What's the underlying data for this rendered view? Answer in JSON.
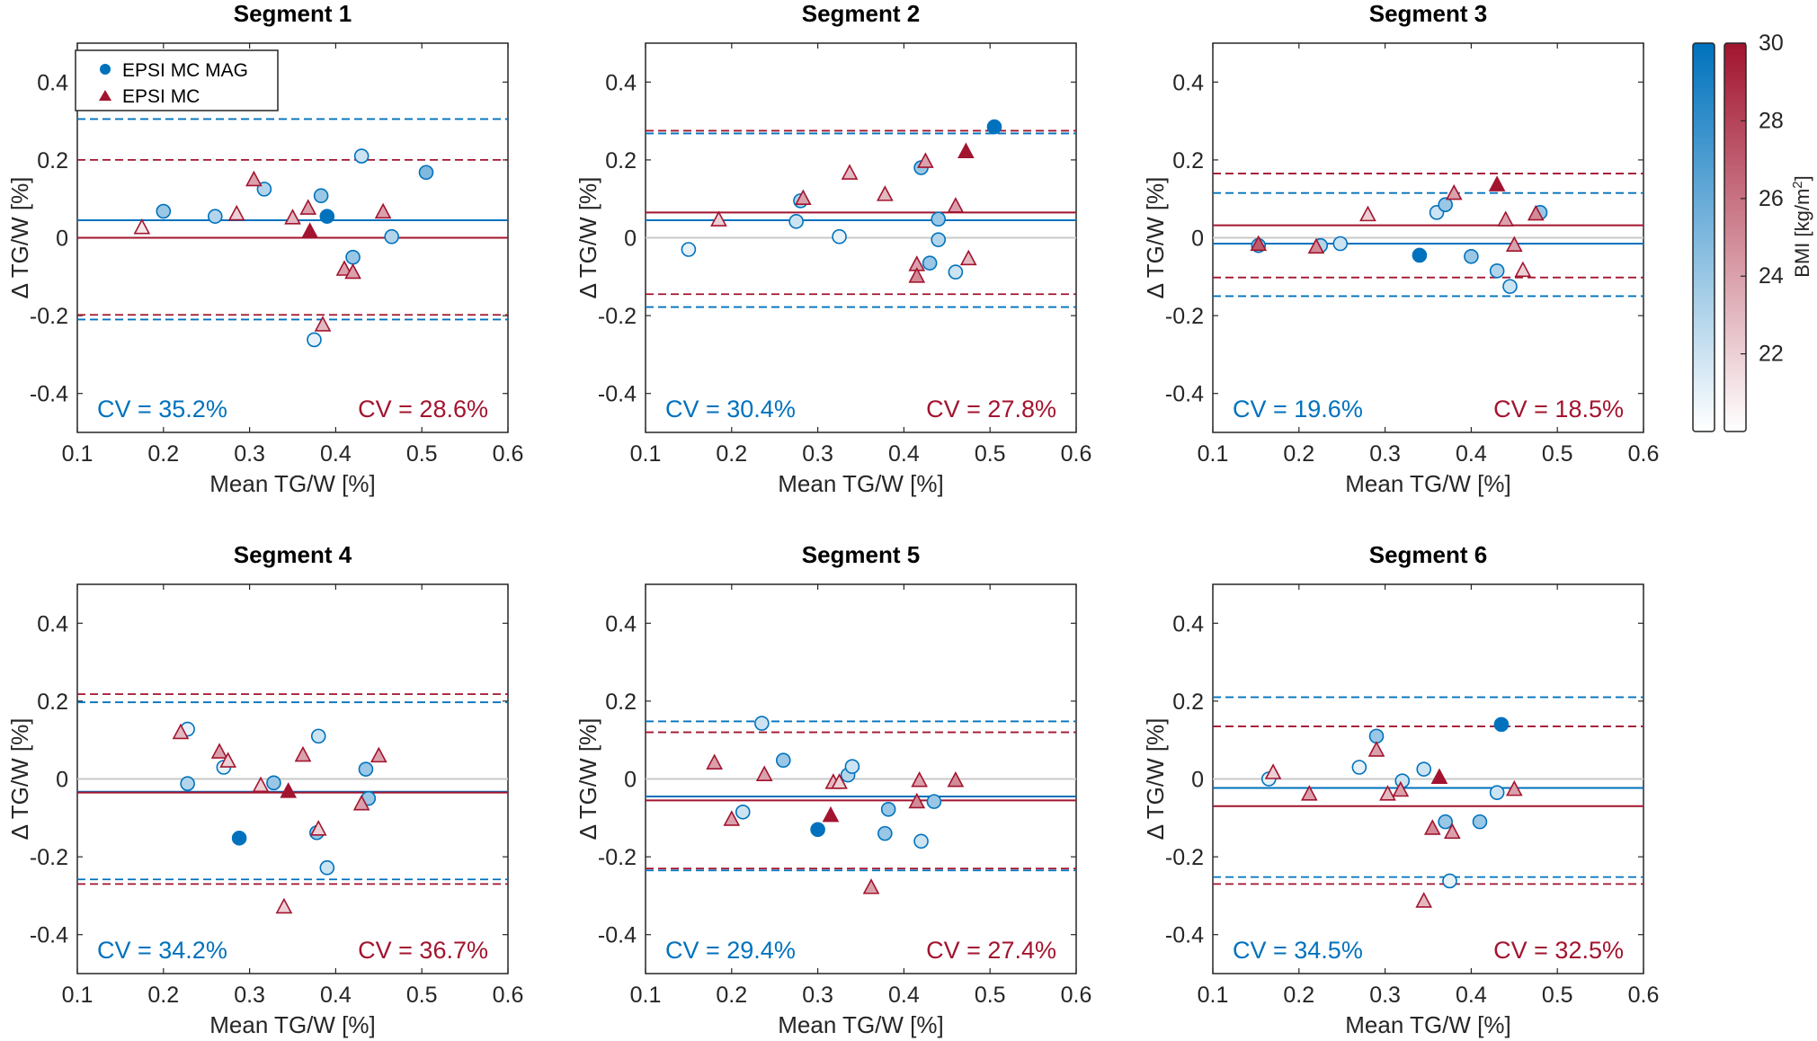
{
  "figure": {
    "colors": {
      "mag": "#0072BD",
      "mc": "#A2142F",
      "zero": "#c8c8c8",
      "axis": "#262626"
    },
    "legend": {
      "entries": [
        "EPSI MC MAG",
        "EPSI MC"
      ]
    },
    "colorbar": {
      "label": "BMI [kg/m",
      "label_sup": "2",
      "label_end": "]",
      "range": [
        20,
        30
      ],
      "ticks": [
        22,
        24,
        26,
        28,
        30
      ]
    }
  },
  "chart_data": [
    {
      "type": "scatter",
      "title": "Segment 1",
      "xlabel": "Mean TG/W [%]",
      "ylabel": "Δ TG/W [%]",
      "xlim": [
        0.1,
        0.6
      ],
      "ylim": [
        -0.5,
        0.5
      ],
      "xticks": [
        "0.1",
        "0.2",
        "0.3",
        "0.4",
        "0.5",
        "0.6"
      ],
      "yticks": [
        "0.4",
        "0.2",
        "0",
        "-0.2",
        "-0.4"
      ],
      "series": [
        {
          "name": "EPSI MC MAG",
          "marker": "circle",
          "bias": 0.045,
          "loa_upper": 0.305,
          "loa_lower": -0.21,
          "cv_label": "CV = 35.2%",
          "points": [
            [
              0.2,
              0.068,
              24
            ],
            [
              0.26,
              0.055,
              23
            ],
            [
              0.317,
              0.125,
              23
            ],
            [
              0.375,
              -0.262,
              21
            ],
            [
              0.383,
              0.108,
              24
            ],
            [
              0.39,
              0.055,
              30
            ],
            [
              0.42,
              -0.05,
              24
            ],
            [
              0.43,
              0.21,
              22
            ],
            [
              0.465,
              0.003,
              23
            ],
            [
              0.505,
              0.168,
              25
            ]
          ]
        },
        {
          "name": "EPSI MC",
          "marker": "triangle",
          "bias": 0.0,
          "loa_upper": 0.2,
          "loa_lower": -0.198,
          "cv_label": "CV = 28.6%",
          "points": [
            [
              0.175,
              0.025,
              21
            ],
            [
              0.285,
              0.06,
              22
            ],
            [
              0.305,
              0.148,
              24
            ],
            [
              0.35,
              0.05,
              23
            ],
            [
              0.368,
              0.075,
              24
            ],
            [
              0.37,
              0.015,
              30
            ],
            [
              0.385,
              -0.225,
              23
            ],
            [
              0.41,
              -0.082,
              24
            ],
            [
              0.42,
              -0.09,
              24
            ],
            [
              0.455,
              0.065,
              24
            ]
          ]
        }
      ]
    },
    {
      "type": "scatter",
      "title": "Segment 2",
      "xlabel": "Mean TG/W [%]",
      "ylabel": "Δ TG/W [%]",
      "xlim": [
        0.1,
        0.6
      ],
      "ylim": [
        -0.5,
        0.5
      ],
      "xticks": [
        "0.1",
        "0.2",
        "0.3",
        "0.4",
        "0.5",
        "0.6"
      ],
      "yticks": [
        "0.4",
        "0.2",
        "0",
        "-0.2",
        "-0.4"
      ],
      "series": [
        {
          "name": "EPSI MC MAG",
          "marker": "circle",
          "bias": 0.045,
          "loa_upper": 0.268,
          "loa_lower": -0.178,
          "cv_label": "CV = 30.4%",
          "points": [
            [
              0.15,
              -0.03,
              21
            ],
            [
              0.275,
              0.042,
              22
            ],
            [
              0.28,
              0.095,
              23
            ],
            [
              0.325,
              0.003,
              21
            ],
            [
              0.42,
              0.18,
              24
            ],
            [
              0.43,
              -0.065,
              24
            ],
            [
              0.44,
              0.048,
              24
            ],
            [
              0.44,
              -0.005,
              23
            ],
            [
              0.46,
              -0.088,
              22
            ],
            [
              0.505,
              0.285,
              30
            ]
          ]
        },
        {
          "name": "EPSI MC",
          "marker": "triangle",
          "bias": 0.065,
          "loa_upper": 0.275,
          "loa_lower": -0.145,
          "cv_label": "CV = 27.8%",
          "points": [
            [
              0.185,
              0.045,
              22
            ],
            [
              0.283,
              0.1,
              24
            ],
            [
              0.337,
              0.165,
              23
            ],
            [
              0.378,
              0.11,
              23
            ],
            [
              0.415,
              -0.07,
              24
            ],
            [
              0.415,
              -0.1,
              25
            ],
            [
              0.425,
              0.195,
              24
            ],
            [
              0.46,
              0.08,
              24
            ],
            [
              0.472,
              0.22,
              30
            ],
            [
              0.475,
              -0.055,
              23
            ]
          ]
        }
      ]
    },
    {
      "type": "scatter",
      "title": "Segment 3",
      "xlabel": "Mean TG/W [%]",
      "ylabel": "Δ TG/W [%]",
      "xlim": [
        0.1,
        0.6
      ],
      "ylim": [
        -0.5,
        0.5
      ],
      "xticks": [
        "0.1",
        "0.2",
        "0.3",
        "0.4",
        "0.5",
        "0.6"
      ],
      "yticks": [
        "0.4",
        "0.2",
        "0",
        "-0.2",
        "-0.4"
      ],
      "series": [
        {
          "name": "EPSI MC MAG",
          "marker": "circle",
          "bias": -0.015,
          "loa_upper": 0.115,
          "loa_lower": -0.15,
          "cv_label": "CV = 19.6%",
          "points": [
            [
              0.153,
              -0.02,
              24
            ],
            [
              0.225,
              -0.02,
              23
            ],
            [
              0.248,
              -0.015,
              22
            ],
            [
              0.34,
              -0.045,
              30
            ],
            [
              0.36,
              0.065,
              22
            ],
            [
              0.37,
              0.085,
              24
            ],
            [
              0.4,
              -0.048,
              24
            ],
            [
              0.43,
              -0.085,
              23
            ],
            [
              0.445,
              -0.125,
              22
            ],
            [
              0.48,
              0.065,
              24
            ]
          ]
        },
        {
          "name": "EPSI MC",
          "marker": "triangle",
          "bias": 0.032,
          "loa_upper": 0.165,
          "loa_lower": -0.102,
          "cv_label": "CV = 18.5%",
          "points": [
            [
              0.153,
              -0.018,
              27
            ],
            [
              0.22,
              -0.025,
              25
            ],
            [
              0.28,
              0.058,
              22
            ],
            [
              0.38,
              0.113,
              24
            ],
            [
              0.43,
              0.135,
              30
            ],
            [
              0.44,
              0.045,
              24
            ],
            [
              0.45,
              -0.02,
              24
            ],
            [
              0.46,
              -0.085,
              22
            ],
            [
              0.475,
              0.06,
              25
            ]
          ]
        }
      ]
    },
    {
      "type": "scatter",
      "title": "Segment 4",
      "xlabel": "Mean TG/W [%]",
      "ylabel": "Δ TG/W [%]",
      "xlim": [
        0.1,
        0.6
      ],
      "ylim": [
        -0.5,
        0.5
      ],
      "xticks": [
        "0.1",
        "0.2",
        "0.3",
        "0.4",
        "0.5",
        "0.6"
      ],
      "yticks": [
        "0.4",
        "0.2",
        "0",
        "-0.2",
        "-0.4"
      ],
      "series": [
        {
          "name": "EPSI MC MAG",
          "marker": "circle",
          "bias": -0.033,
          "loa_upper": 0.197,
          "loa_lower": -0.258,
          "cv_label": "CV = 34.2%",
          "points": [
            [
              0.228,
              0.128,
              21
            ],
            [
              0.228,
              -0.012,
              23
            ],
            [
              0.27,
              0.03,
              21
            ],
            [
              0.288,
              -0.152,
              30
            ],
            [
              0.328,
              -0.01,
              24
            ],
            [
              0.378,
              -0.138,
              24
            ],
            [
              0.38,
              0.11,
              22
            ],
            [
              0.39,
              -0.228,
              22
            ],
            [
              0.435,
              0.025,
              24
            ],
            [
              0.438,
              -0.05,
              24
            ]
          ]
        },
        {
          "name": "EPSI MC",
          "marker": "triangle",
          "bias": -0.035,
          "loa_upper": 0.218,
          "loa_lower": -0.27,
          "cv_label": "CV = 36.7%",
          "points": [
            [
              0.22,
              0.118,
              23
            ],
            [
              0.265,
              0.068,
              24
            ],
            [
              0.275,
              0.045,
              22
            ],
            [
              0.313,
              -0.018,
              22
            ],
            [
              0.34,
              -0.33,
              22
            ],
            [
              0.345,
              -0.033,
              30
            ],
            [
              0.362,
              0.06,
              24
            ],
            [
              0.38,
              -0.13,
              22
            ],
            [
              0.43,
              -0.065,
              24
            ],
            [
              0.45,
              0.058,
              24
            ]
          ]
        }
      ]
    },
    {
      "type": "scatter",
      "title": "Segment 5",
      "xlabel": "Mean TG/W [%]",
      "ylabel": "Δ TG/W [%]",
      "xlim": [
        0.1,
        0.6
      ],
      "ylim": [
        -0.5,
        0.5
      ],
      "xticks": [
        "0.1",
        "0.2",
        "0.3",
        "0.4",
        "0.5",
        "0.6"
      ],
      "yticks": [
        "0.4",
        "0.2",
        "0",
        "-0.2",
        "-0.4"
      ],
      "series": [
        {
          "name": "EPSI MC MAG",
          "marker": "circle",
          "bias": -0.045,
          "loa_upper": 0.148,
          "loa_lower": -0.235,
          "cv_label": "CV = 29.4%",
          "points": [
            [
              0.213,
              -0.085,
              22
            ],
            [
              0.235,
              0.143,
              22
            ],
            [
              0.26,
              0.048,
              24
            ],
            [
              0.3,
              -0.13,
              30
            ],
            [
              0.335,
              0.01,
              23
            ],
            [
              0.34,
              0.032,
              22
            ],
            [
              0.378,
              -0.14,
              24
            ],
            [
              0.382,
              -0.078,
              24
            ],
            [
              0.42,
              -0.16,
              22
            ],
            [
              0.435,
              -0.058,
              24
            ]
          ]
        },
        {
          "name": "EPSI MC",
          "marker": "triangle",
          "bias": -0.055,
          "loa_upper": 0.12,
          "loa_lower": -0.23,
          "cv_label": "CV = 27.4%",
          "points": [
            [
              0.18,
              0.04,
              24
            ],
            [
              0.2,
              -0.105,
              24
            ],
            [
              0.238,
              0.01,
              24
            ],
            [
              0.318,
              -0.01,
              23
            ],
            [
              0.325,
              -0.01,
              22
            ],
            [
              0.315,
              -0.095,
              30
            ],
            [
              0.362,
              -0.28,
              24
            ],
            [
              0.415,
              -0.06,
              25
            ],
            [
              0.418,
              -0.005,
              24
            ],
            [
              0.46,
              -0.005,
              25
            ]
          ]
        }
      ]
    },
    {
      "type": "scatter",
      "title": "Segment 6",
      "xlabel": "Mean TG/W [%]",
      "ylabel": "Δ TG/W [%]",
      "xlim": [
        0.1,
        0.6
      ],
      "ylim": [
        -0.5,
        0.5
      ],
      "xticks": [
        "0.1",
        "0.2",
        "0.3",
        "0.4",
        "0.5",
        "0.6"
      ],
      "yticks": [
        "0.4",
        "0.2",
        "0",
        "-0.2",
        "-0.4"
      ],
      "series": [
        {
          "name": "EPSI MC MAG",
          "marker": "circle",
          "bias": -0.023,
          "loa_upper": 0.21,
          "loa_lower": -0.252,
          "cv_label": "CV = 34.5%",
          "points": [
            [
              0.165,
              0.0,
              21
            ],
            [
              0.27,
              0.03,
              21
            ],
            [
              0.29,
              0.11,
              24
            ],
            [
              0.32,
              -0.005,
              22
            ],
            [
              0.345,
              0.025,
              22
            ],
            [
              0.37,
              -0.11,
              24
            ],
            [
              0.375,
              -0.262,
              21
            ],
            [
              0.41,
              -0.11,
              24
            ],
            [
              0.43,
              -0.035,
              22
            ],
            [
              0.435,
              0.14,
              30
            ]
          ]
        },
        {
          "name": "EPSI MC",
          "marker": "triangle",
          "bias": -0.07,
          "loa_upper": 0.135,
          "loa_lower": -0.27,
          "cv_label": "CV = 32.5%",
          "points": [
            [
              0.17,
              0.015,
              22
            ],
            [
              0.212,
              -0.04,
              24
            ],
            [
              0.29,
              0.073,
              24
            ],
            [
              0.303,
              -0.04,
              23
            ],
            [
              0.318,
              -0.03,
              24
            ],
            [
              0.345,
              -0.315,
              23
            ],
            [
              0.355,
              -0.128,
              25
            ],
            [
              0.363,
              0.003,
              30
            ],
            [
              0.378,
              -0.138,
              24
            ],
            [
              0.45,
              -0.028,
              24
            ]
          ]
        }
      ]
    }
  ]
}
